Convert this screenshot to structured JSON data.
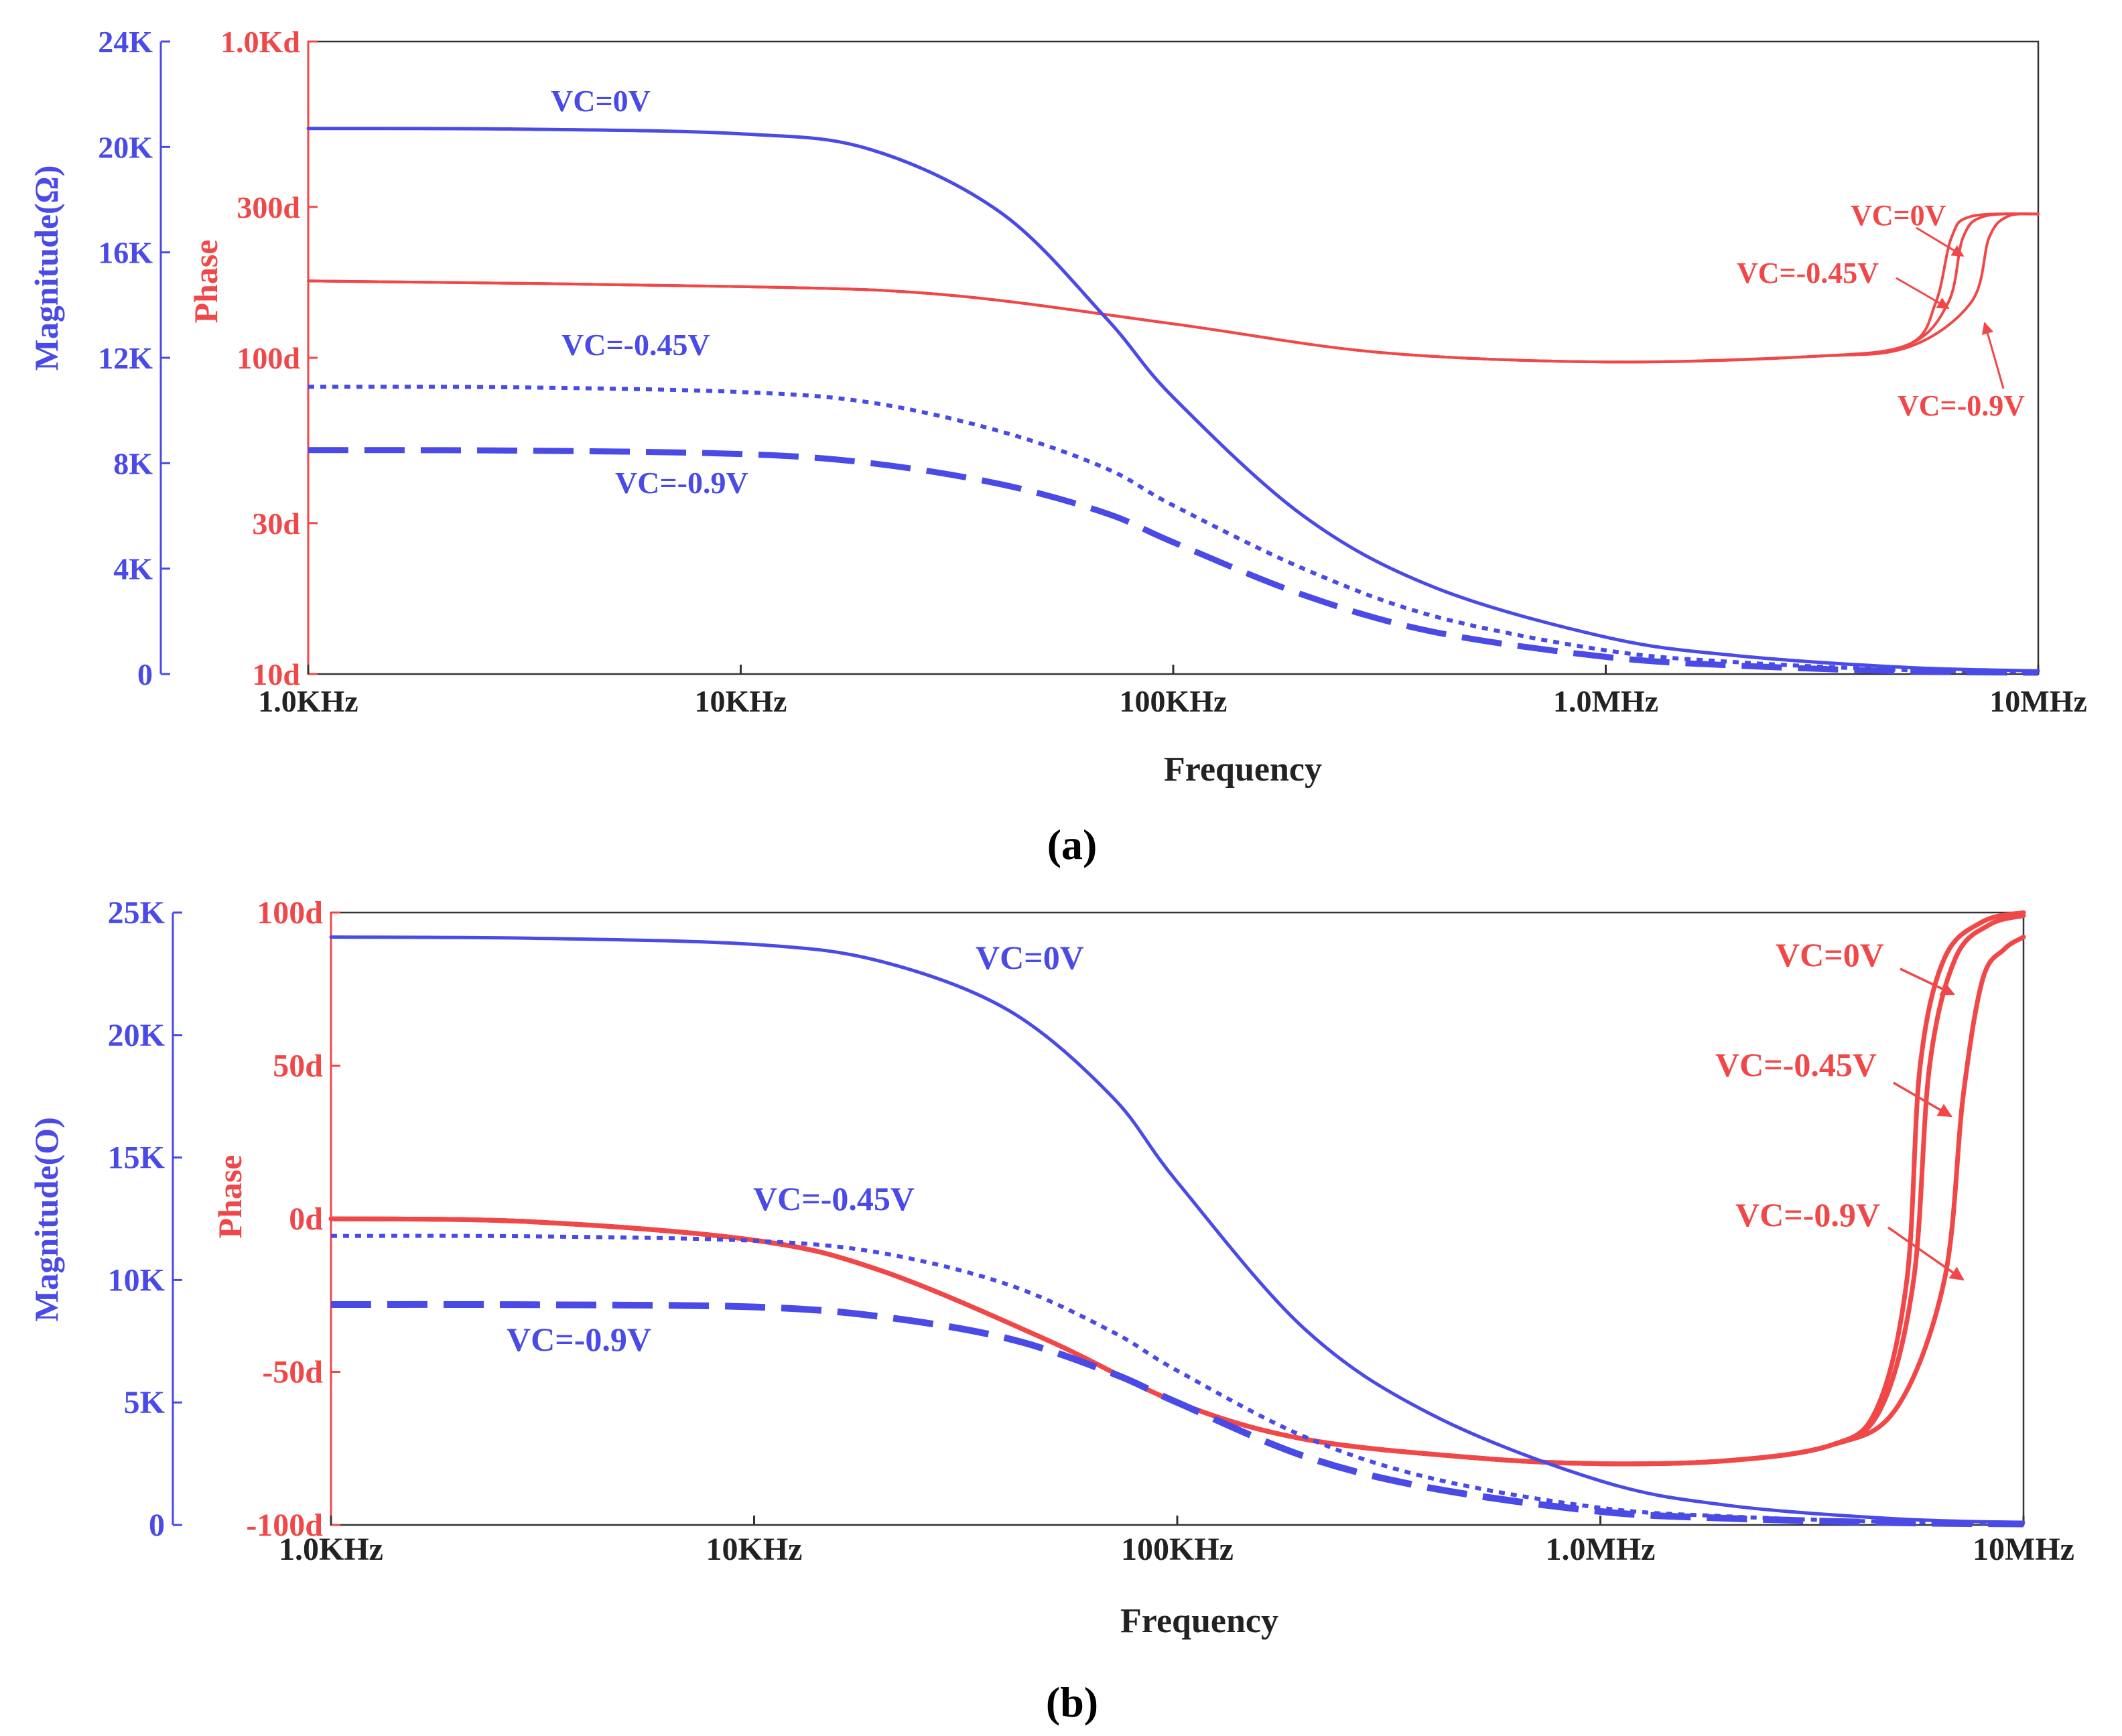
{
  "colors": {
    "magnitude": "#4a4ae6",
    "phase": "#f04848",
    "axis_text": "#222222"
  },
  "chart_data": [
    {
      "panel_label": "(a)",
      "caption_letter": "a",
      "type": "line",
      "xlabel": "Frequency",
      "x_scale": "log",
      "xlim": [
        1000,
        10000000
      ],
      "x_ticks": [
        {
          "value": 1000,
          "label": "1.0KHz"
        },
        {
          "value": 10000,
          "label": "10KHz"
        },
        {
          "value": 100000,
          "label": "100KHz"
        },
        {
          "value": 1000000,
          "label": "1.0MHz"
        },
        {
          "value": 10000000,
          "label": "10MHz"
        }
      ],
      "y_left": {
        "label": "Magnitude(Ω)",
        "scale": "linear",
        "lim": [
          0,
          24000
        ],
        "ticks": [
          {
            "value": 0,
            "label": "0"
          },
          {
            "value": 4000,
            "label": "4K"
          },
          {
            "value": 8000,
            "label": "8K"
          },
          {
            "value": 12000,
            "label": "12K"
          },
          {
            "value": 16000,
            "label": "16K"
          },
          {
            "value": 20000,
            "label": "20K"
          },
          {
            "value": 24000,
            "label": "24K"
          }
        ]
      },
      "y_right": {
        "label": "Phase",
        "scale": "log",
        "lim": [
          10,
          1000
        ],
        "ticks": [
          {
            "value": 10,
            "label": "10d"
          },
          {
            "value": 30,
            "label": "30d"
          },
          {
            "value": 100,
            "label": "100d"
          },
          {
            "value": 300,
            "label": "300d"
          },
          {
            "value": 1000,
            "label": "1.0Kd"
          }
        ]
      },
      "magnitude_series": [
        {
          "name": "VC=0V",
          "style": "solid",
          "x": [
            1000,
            3000,
            10000,
            20000,
            40000,
            70000,
            100000,
            200000,
            400000,
            1000000,
            2000000,
            5000000,
            10000000
          ],
          "y": [
            20700,
            20680,
            20500,
            19900,
            17500,
            13500,
            10500,
            6000,
            3300,
            1400,
            700,
            250,
            120
          ]
        },
        {
          "name": "VC=-0.45V",
          "style": "dotted",
          "x": [
            1000,
            3000,
            10000,
            20000,
            40000,
            70000,
            100000,
            200000,
            400000,
            1000000,
            2000000,
            5000000,
            10000000
          ],
          "y": [
            10900,
            10880,
            10700,
            10300,
            9200,
            7800,
            6400,
            4000,
            2200,
            900,
            450,
            150,
            80
          ]
        },
        {
          "name": "VC=-0.9V",
          "style": "dashed",
          "x": [
            1000,
            3000,
            10000,
            20000,
            40000,
            70000,
            100000,
            200000,
            400000,
            1000000,
            2000000,
            5000000,
            10000000
          ],
          "y": [
            8500,
            8480,
            8350,
            8000,
            7200,
            6100,
            5000,
            3000,
            1600,
            650,
            320,
            100,
            50
          ]
        }
      ],
      "phase_series": [
        {
          "name": "VC=0V",
          "x": [
            1000,
            10000,
            30000,
            100000,
            300000,
            1000000,
            3000000,
            5000000,
            5800000,
            6300000,
            7000000,
            10000000
          ],
          "y": [
            175,
            168,
            158,
            128,
            104,
            97,
            101,
            110,
            150,
            240,
            280,
            285
          ]
        },
        {
          "name": "VC=-0.45V",
          "x": [
            1000,
            10000,
            30000,
            100000,
            300000,
            1000000,
            3000000,
            5000000,
            6200000,
            6700000,
            7500000,
            10000000
          ],
          "y": [
            175,
            168,
            158,
            128,
            104,
            97,
            101,
            110,
            150,
            240,
            280,
            285
          ]
        },
        {
          "name": "VC=-0.9V",
          "x": [
            1000,
            10000,
            30000,
            100000,
            300000,
            1000000,
            3000000,
            5000000,
            7000000,
            7700000,
            8500000,
            10000000
          ],
          "y": [
            175,
            168,
            158,
            128,
            104,
            97,
            101,
            108,
            150,
            240,
            280,
            285
          ]
        }
      ],
      "annotations": {
        "mag_0": "VC=0V",
        "mag_045": "VC=-0.45V",
        "mag_09": "VC=-0.9V",
        "ph_0": "VC=0V",
        "ph_045": "VC=-0.45V",
        "ph_09": "VC=-0.9V"
      }
    },
    {
      "panel_label": "(b)",
      "caption_letter": "b",
      "type": "line",
      "xlabel": "Frequency",
      "x_scale": "log",
      "xlim": [
        1000,
        10000000
      ],
      "x_ticks": [
        {
          "value": 1000,
          "label": "1.0KHz"
        },
        {
          "value": 10000,
          "label": "10KHz"
        },
        {
          "value": 100000,
          "label": "100KHz"
        },
        {
          "value": 1000000,
          "label": "1.0MHz"
        },
        {
          "value": 10000000,
          "label": "10MHz"
        }
      ],
      "y_left": {
        "label": "Magnitude(O)",
        "scale": "linear",
        "lim": [
          0,
          25000
        ],
        "ticks": [
          {
            "value": 0,
            "label": "0"
          },
          {
            "value": 5000,
            "label": "5K"
          },
          {
            "value": 10000,
            "label": "10K"
          },
          {
            "value": 15000,
            "label": "15K"
          },
          {
            "value": 20000,
            "label": "20K"
          },
          {
            "value": 25000,
            "label": "25K"
          }
        ]
      },
      "y_right": {
        "label": "Phase",
        "scale": "linear",
        "lim": [
          -100,
          100
        ],
        "ticks": [
          {
            "value": -100,
            "label": "-100d"
          },
          {
            "value": -50,
            "label": "-50d"
          },
          {
            "value": 0,
            "label": "0d"
          },
          {
            "value": 50,
            "label": "50d"
          },
          {
            "value": 100,
            "label": "100d"
          }
        ]
      },
      "magnitude_series": [
        {
          "name": "VC=0V",
          "style": "solid",
          "x": [
            1000,
            3000,
            10000,
            20000,
            40000,
            70000,
            100000,
            200000,
            400000,
            1000000,
            2000000,
            5000000,
            10000000
          ],
          "y": [
            24000,
            23950,
            23700,
            23000,
            21000,
            17500,
            14000,
            8000,
            4500,
            1800,
            800,
            250,
            100
          ]
        },
        {
          "name": "VC=-0.45V",
          "style": "dotted",
          "x": [
            1000,
            3000,
            10000,
            20000,
            40000,
            70000,
            100000,
            200000,
            400000,
            1000000,
            2000000,
            5000000,
            10000000
          ],
          "y": [
            11800,
            11780,
            11600,
            11100,
            9800,
            7900,
            6300,
            3600,
            1900,
            700,
            350,
            120,
            60
          ]
        },
        {
          "name": "VC=-0.9V",
          "style": "dashed",
          "x": [
            1000,
            3000,
            10000,
            20000,
            40000,
            70000,
            100000,
            200000,
            400000,
            1000000,
            2000000,
            5000000,
            10000000
          ],
          "y": [
            9000,
            8990,
            8900,
            8500,
            7600,
            6200,
            5000,
            2800,
            1500,
            550,
            270,
            90,
            40
          ]
        }
      ],
      "phase_series": [
        {
          "name": "VC=0V",
          "x": [
            1000,
            3000,
            10000,
            20000,
            50000,
            100000,
            200000,
            500000,
            1000000,
            2000000,
            3500000,
            4500000,
            5300000,
            5700000,
            6500000,
            8000000,
            10000000
          ],
          "y": [
            0,
            -1,
            -7,
            -17,
            -40,
            -60,
            -72,
            -78,
            -80,
            -79,
            -74,
            -62,
            -20,
            50,
            85,
            97,
            100
          ]
        },
        {
          "name": "VC=-0.45V",
          "x": [
            1000,
            3000,
            10000,
            20000,
            50000,
            100000,
            200000,
            500000,
            1000000,
            2000000,
            3500000,
            4600000,
            5500000,
            6000000,
            6900000,
            8300000,
            10000000
          ],
          "y": [
            0,
            -1,
            -7,
            -17,
            -40,
            -60,
            -72,
            -78,
            -80,
            -79,
            -74,
            -62,
            -20,
            50,
            85,
            96,
            99
          ]
        },
        {
          "name": "VC=-0.9V",
          "x": [
            1000,
            3000,
            10000,
            20000,
            50000,
            100000,
            200000,
            500000,
            1000000,
            2000000,
            3500000,
            5000000,
            6500000,
            7200000,
            8000000,
            9000000,
            10000000
          ],
          "y": [
            0,
            -1,
            -7,
            -17,
            -40,
            -60,
            -72,
            -78,
            -80,
            -79,
            -74,
            -62,
            -20,
            40,
            78,
            88,
            92
          ]
        }
      ],
      "annotations": {
        "mag_0": "VC=0V",
        "mag_045": "VC=-0.45V",
        "mag_09": "VC=-0.9V",
        "ph_0": "VC=0V",
        "ph_045": "VC=-0.45V",
        "ph_09": "VC=-0.9V"
      }
    }
  ]
}
